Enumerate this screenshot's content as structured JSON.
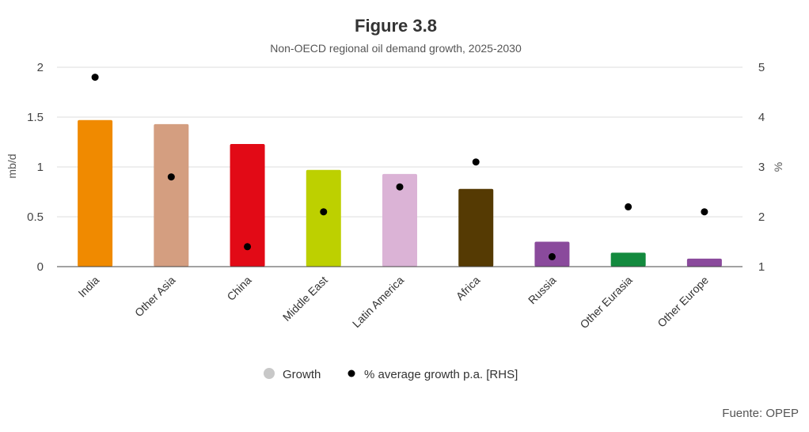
{
  "chart_data": {
    "type": "bar",
    "title": "Figure 3.8",
    "subtitle": "Non-OECD regional oil demand growth, 2025-2030",
    "categories": [
      "India",
      "Other Asia",
      "China",
      "Middle East",
      "Latin America",
      "Africa",
      "Russia",
      "Other Eurasia",
      "Other Europe"
    ],
    "series": [
      {
        "name": "Growth",
        "type": "bar",
        "axis": "left",
        "values": [
          1.47,
          1.43,
          1.23,
          0.97,
          0.93,
          0.78,
          0.25,
          0.14,
          0.08
        ],
        "colors": [
          "#f08a00",
          "#d49e80",
          "#e20a16",
          "#bdd000",
          "#dbb3d6",
          "#553a03",
          "#8a4a9c",
          "#138a3e",
          "#8a4a9c"
        ],
        "legend_color": "#c8c8c8"
      },
      {
        "name": "% average growth p.a. [RHS]",
        "type": "scatter",
        "axis": "right",
        "values": [
          4.8,
          2.8,
          1.4,
          2.1,
          2.6,
          3.1,
          1.2,
          2.2,
          2.1
        ],
        "color": "#000000"
      }
    ],
    "ylabel": "mb/d",
    "y2label": "%",
    "ylim": [
      0,
      2
    ],
    "y2lim": [
      1,
      5
    ],
    "yticks": [
      "0",
      "0.5",
      "1",
      "1.5",
      "2"
    ],
    "y2ticks": [
      "1",
      "2",
      "3",
      "4",
      "5"
    ],
    "grid": true,
    "legend_position": "bottom"
  },
  "source": "Fuente: OPEP"
}
